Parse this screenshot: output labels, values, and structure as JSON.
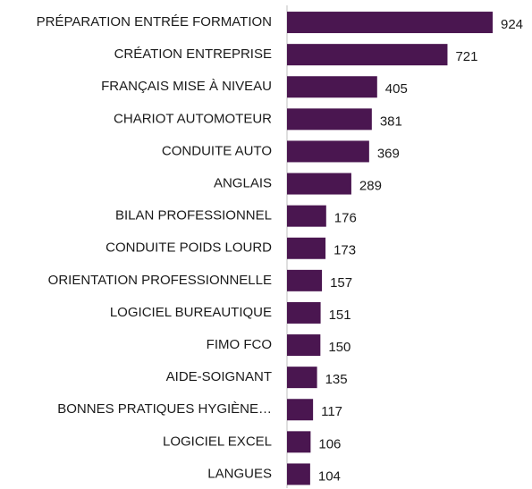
{
  "chart_data": {
    "type": "bar",
    "orientation": "horizontal",
    "categories": [
      "PRÉPARATION ENTRÉE FORMATION",
      "CRÉATION ENTREPRISE",
      "FRANÇAIS MISE À NIVEAU",
      "CHARIOT AUTOMOTEUR",
      "CONDUITE AUTO",
      "ANGLAIS",
      "BILAN PROFESSIONNEL",
      "CONDUITE POIDS LOURD",
      "ORIENTATION PROFESSIONNELLE",
      "LOGICIEL BUREAUTIQUE",
      "FIMO FCO",
      "AIDE-SOIGNANT",
      "BONNES PRATIQUES HYGIÈNE…",
      "LOGICIEL EXCEL",
      "LANGUES"
    ],
    "values": [
      924,
      721,
      405,
      381,
      369,
      289,
      176,
      173,
      157,
      151,
      150,
      135,
      117,
      106,
      104
    ],
    "color": "#4a1650"
  }
}
